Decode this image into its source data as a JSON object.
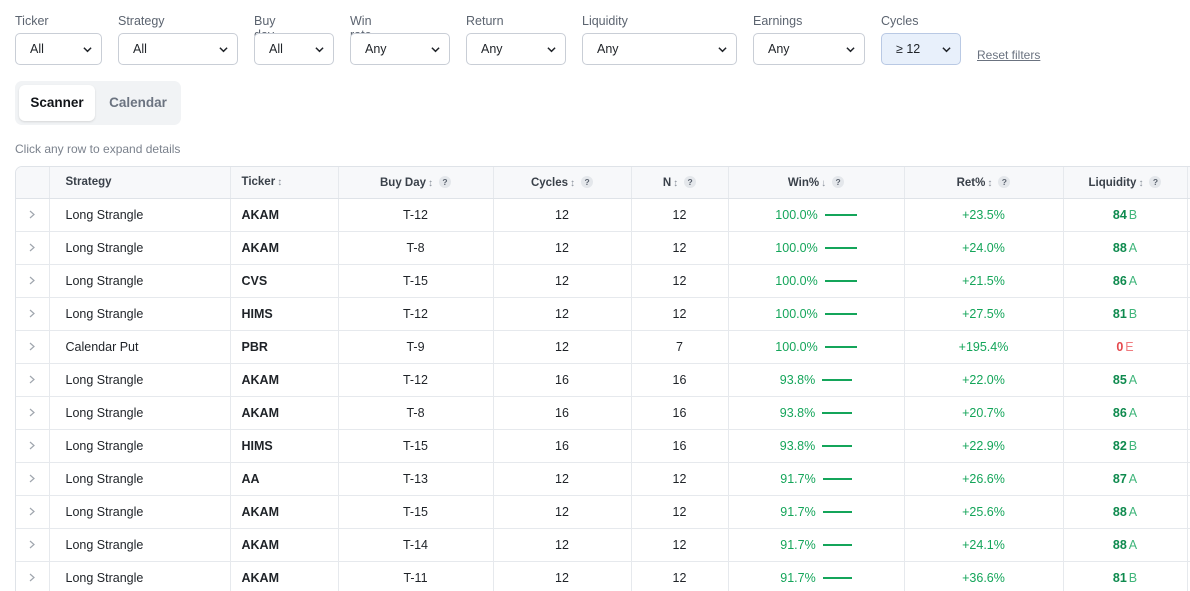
{
  "filters": {
    "ticker": {
      "label": "Ticker",
      "value": "All"
    },
    "strategy": {
      "label": "Strategy",
      "value": "All"
    },
    "buy_day": {
      "label": "Buy day",
      "value": "All"
    },
    "win_rate": {
      "label": "Win rate",
      "value": "Any"
    },
    "return": {
      "label": "Return",
      "value": "Any"
    },
    "liquidity": {
      "label": "Liquidity",
      "value": "Any"
    },
    "earnings": {
      "label": "Earnings",
      "value": "Any"
    },
    "cycles": {
      "label": "Cycles",
      "value": "≥ 12"
    },
    "reset_label": "Reset filters"
  },
  "tabs": {
    "scanner": "Scanner",
    "calendar": "Calendar",
    "active": "scanner"
  },
  "hint": "Click any row to expand details",
  "table": {
    "headers": {
      "strategy": "Strategy",
      "ticker": "Ticker",
      "buy_day": "Buy Day",
      "cycles": "Cycles",
      "n": "N",
      "win": "Win%",
      "ret": "Ret%",
      "liquidity": "Liquidity"
    },
    "sort_icons": {
      "ticker": "↕",
      "buy_day": "↕",
      "cycles": "↕",
      "n": "↕",
      "win": "↓",
      "ret": "↕",
      "liquidity": "↕"
    },
    "help_glyph": "?",
    "rows": [
      {
        "strategy": "Long Strangle",
        "ticker": "AKAM",
        "buy_day": "T-12",
        "cycles": "12",
        "n": "12",
        "win": "100.0%",
        "win_fraction": 1.0,
        "ret": "+23.5%",
        "liq_score": "84",
        "liq_grade": "B",
        "liq_status": "good"
      },
      {
        "strategy": "Long Strangle",
        "ticker": "AKAM",
        "buy_day": "T-8",
        "cycles": "12",
        "n": "12",
        "win": "100.0%",
        "win_fraction": 1.0,
        "ret": "+24.0%",
        "liq_score": "88",
        "liq_grade": "A",
        "liq_status": "good"
      },
      {
        "strategy": "Long Strangle",
        "ticker": "CVS",
        "buy_day": "T-15",
        "cycles": "12",
        "n": "12",
        "win": "100.0%",
        "win_fraction": 1.0,
        "ret": "+21.5%",
        "liq_score": "86",
        "liq_grade": "A",
        "liq_status": "good"
      },
      {
        "strategy": "Long Strangle",
        "ticker": "HIMS",
        "buy_day": "T-12",
        "cycles": "12",
        "n": "12",
        "win": "100.0%",
        "win_fraction": 1.0,
        "ret": "+27.5%",
        "liq_score": "81",
        "liq_grade": "B",
        "liq_status": "good"
      },
      {
        "strategy": "Calendar Put",
        "ticker": "PBR",
        "buy_day": "T-9",
        "cycles": "12",
        "n": "7",
        "win": "100.0%",
        "win_fraction": 1.0,
        "ret": "+195.4%",
        "liq_score": "0",
        "liq_grade": "E",
        "liq_status": "bad"
      },
      {
        "strategy": "Long Strangle",
        "ticker": "AKAM",
        "buy_day": "T-12",
        "cycles": "16",
        "n": "16",
        "win": "93.8%",
        "win_fraction": 0.938,
        "ret": "+22.0%",
        "liq_score": "85",
        "liq_grade": "A",
        "liq_status": "good"
      },
      {
        "strategy": "Long Strangle",
        "ticker": "AKAM",
        "buy_day": "T-8",
        "cycles": "16",
        "n": "16",
        "win": "93.8%",
        "win_fraction": 0.938,
        "ret": "+20.7%",
        "liq_score": "86",
        "liq_grade": "A",
        "liq_status": "good"
      },
      {
        "strategy": "Long Strangle",
        "ticker": "HIMS",
        "buy_day": "T-15",
        "cycles": "16",
        "n": "16",
        "win": "93.8%",
        "win_fraction": 0.938,
        "ret": "+22.9%",
        "liq_score": "82",
        "liq_grade": "B",
        "liq_status": "good"
      },
      {
        "strategy": "Long Strangle",
        "ticker": "AA",
        "buy_day": "T-13",
        "cycles": "12",
        "n": "12",
        "win": "91.7%",
        "win_fraction": 0.917,
        "ret": "+26.6%",
        "liq_score": "87",
        "liq_grade": "A",
        "liq_status": "good"
      },
      {
        "strategy": "Long Strangle",
        "ticker": "AKAM",
        "buy_day": "T-15",
        "cycles": "12",
        "n": "12",
        "win": "91.7%",
        "win_fraction": 0.917,
        "ret": "+25.6%",
        "liq_score": "88",
        "liq_grade": "A",
        "liq_status": "good"
      },
      {
        "strategy": "Long Strangle",
        "ticker": "AKAM",
        "buy_day": "T-14",
        "cycles": "12",
        "n": "12",
        "win": "91.7%",
        "win_fraction": 0.917,
        "ret": "+24.1%",
        "liq_score": "88",
        "liq_grade": "A",
        "liq_status": "good"
      },
      {
        "strategy": "Long Strangle",
        "ticker": "AKAM",
        "buy_day": "T-11",
        "cycles": "12",
        "n": "12",
        "win": "91.7%",
        "win_fraction": 0.917,
        "ret": "+36.6%",
        "liq_score": "81",
        "liq_grade": "B",
        "liq_status": "good"
      }
    ]
  }
}
